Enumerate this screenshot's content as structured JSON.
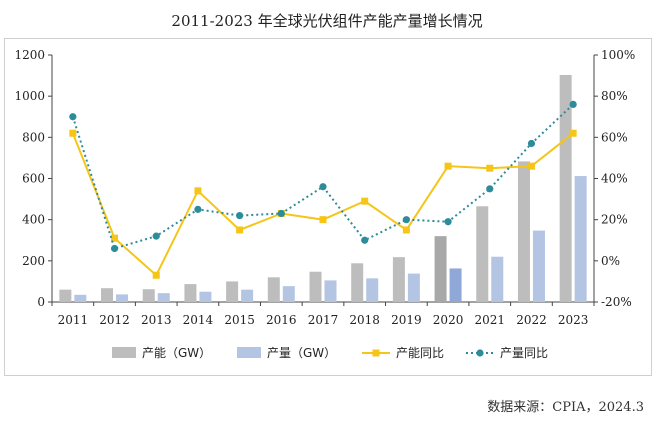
{
  "title": "2011-2023 年全球光伏组件产能产量增长情况",
  "source": "数据来源：CPIA，2024.3",
  "chart_data": {
    "type": "bar",
    "title": "2011-2023 年全球光伏组件产能产量增长情况",
    "categories": [
      "2011",
      "2012",
      "2013",
      "2014",
      "2015",
      "2016",
      "2017",
      "2018",
      "2019",
      "2020",
      "2021",
      "2022",
      "2023"
    ],
    "y_left": {
      "min": 0,
      "max": 1200,
      "ticks": [
        "0",
        "200",
        "400",
        "600",
        "800",
        "1000",
        "1200"
      ]
    },
    "y_right": {
      "min": -20,
      "max": 100,
      "ticks": [
        "-20%",
        "0%",
        "20%",
        "40%",
        "60%",
        "80%",
        "100%"
      ]
    },
    "series": [
      {
        "name": "产能（GW）",
        "kind": "bar",
        "axis": "left",
        "color": "#bdbdbd",
        "values": [
          60,
          67,
          62,
          87,
          100,
          120,
          147,
          188,
          218,
          320,
          465,
          683,
          1103
        ]
      },
      {
        "name": "产量（GW）",
        "kind": "bar",
        "axis": "left",
        "color": "#b4c5e4",
        "values": [
          35,
          37,
          43,
          50,
          60,
          77,
          105,
          115,
          138,
          163,
          220,
          347,
          612
        ]
      },
      {
        "name": "产能同比",
        "kind": "line",
        "axis": "right",
        "color": "#f5c518",
        "values": [
          62,
          11,
          -7,
          34,
          15,
          23,
          20,
          29,
          15,
          46,
          45,
          46,
          62
        ]
      },
      {
        "name": "产量同比",
        "kind": "line-dotted",
        "axis": "right",
        "color": "#2e8b9a",
        "values": [
          70,
          6,
          12,
          25,
          22,
          23,
          36,
          10,
          20,
          19,
          35,
          57,
          76
        ]
      }
    ],
    "highlight_index": 9,
    "highlight_colors": {
      "capacity": "#a8a8a8",
      "production": "#8fa8d8"
    },
    "grid": false,
    "legend_position": "bottom"
  }
}
